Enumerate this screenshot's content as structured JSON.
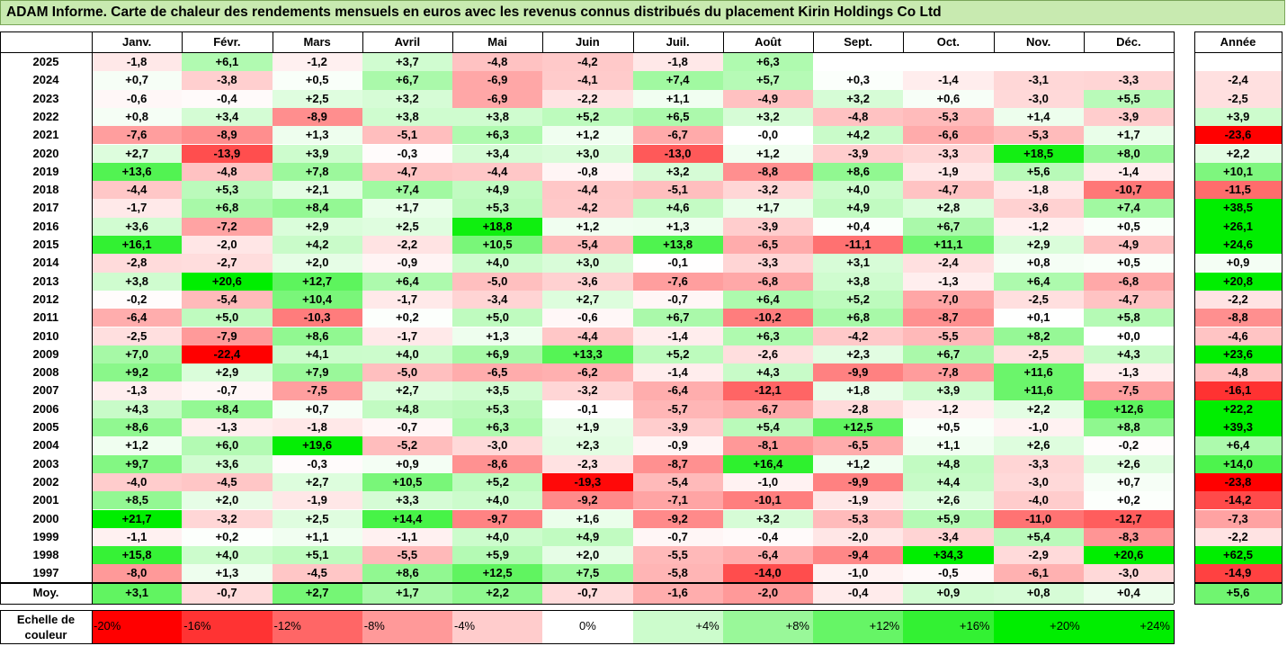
{
  "title": "ADAM Informe. Carte de chaleur des rendements mensuels en euros avec les revenus connus distribués du placement Kirin Holdings Co Ltd",
  "chart_data": {
    "type": "heatmap",
    "columns": [
      "Janv.",
      "Févr.",
      "Mars",
      "Avril",
      "Mai",
      "Juin",
      "Juil.",
      "Août",
      "Sept.",
      "Oct.",
      "Nov.",
      "Déc."
    ],
    "year_column_label": "Année",
    "rows": [
      {
        "year": "2025",
        "months": [
          "-1,8",
          "+6,1",
          "-1,2",
          "+3,7",
          "-4,8",
          "-4,2",
          "-1,8",
          "+6,3",
          "",
          "",
          "",
          ""
        ],
        "annual": ""
      },
      {
        "year": "2024",
        "months": [
          "+0,7",
          "-3,8",
          "+0,5",
          "+6,7",
          "-6,9",
          "-4,1",
          "+7,4",
          "+5,7",
          "+0,3",
          "-1,4",
          "-3,1",
          "-3,3"
        ],
        "annual": "-2,4"
      },
      {
        "year": "2023",
        "months": [
          "-0,6",
          "-0,4",
          "+2,5",
          "+3,2",
          "-6,9",
          "-2,2",
          "+1,1",
          "-4,9",
          "+3,2",
          "+0,6",
          "-3,0",
          "+5,5"
        ],
        "annual": "-2,5"
      },
      {
        "year": "2022",
        "months": [
          "+0,8",
          "+3,4",
          "-8,9",
          "+3,8",
          "+3,8",
          "+5,2",
          "+6,5",
          "+3,2",
          "-4,8",
          "-5,3",
          "+1,4",
          "-3,9"
        ],
        "annual": "+3,9"
      },
      {
        "year": "2021",
        "months": [
          "-7,6",
          "-8,9",
          "+1,3",
          "-5,1",
          "+6,3",
          "+1,2",
          "-6,7",
          "-0,0",
          "+4,2",
          "-6,6",
          "-5,3",
          "+1,7"
        ],
        "annual": "-23,6"
      },
      {
        "year": "2020",
        "months": [
          "+2,7",
          "-13,9",
          "+3,9",
          "-0,3",
          "+3,4",
          "+3,0",
          "-13,0",
          "+1,2",
          "-3,9",
          "-3,3",
          "+18,5",
          "+8,0"
        ],
        "annual": "+2,2"
      },
      {
        "year": "2019",
        "months": [
          "+13,6",
          "-4,8",
          "+7,8",
          "-4,7",
          "-4,4",
          "-0,8",
          "+3,2",
          "-8,8",
          "+8,6",
          "-1,9",
          "+5,6",
          "-1,4"
        ],
        "annual": "+10,1"
      },
      {
        "year": "2018",
        "months": [
          "-4,4",
          "+5,3",
          "+2,1",
          "+7,4",
          "+4,9",
          "-4,4",
          "-5,1",
          "-3,2",
          "+4,0",
          "-4,7",
          "-1,8",
          "-10,7"
        ],
        "annual": "-11,5"
      },
      {
        "year": "2017",
        "months": [
          "-1,7",
          "+6,8",
          "+8,4",
          "+1,7",
          "+5,3",
          "-4,2",
          "+4,6",
          "+1,7",
          "+4,9",
          "+2,8",
          "-3,6",
          "+7,4"
        ],
        "annual": "+38,5"
      },
      {
        "year": "2016",
        "months": [
          "+3,6",
          "-7,2",
          "+2,9",
          "+2,5",
          "+18,8",
          "+1,2",
          "+1,3",
          "-3,9",
          "+0,4",
          "+6,7",
          "-1,2",
          "+0,5"
        ],
        "annual": "+26,1"
      },
      {
        "year": "2015",
        "months": [
          "+16,1",
          "-2,0",
          "+4,2",
          "-2,2",
          "+10,5",
          "-5,4",
          "+13,8",
          "-6,5",
          "-11,1",
          "+11,1",
          "+2,9",
          "-4,9"
        ],
        "annual": "+24,6"
      },
      {
        "year": "2014",
        "months": [
          "-2,8",
          "-2,7",
          "+2,0",
          "-0,9",
          "+4,0",
          "+3,0",
          "-0,1",
          "-3,3",
          "+3,1",
          "-2,4",
          "+0,8",
          "+0,5"
        ],
        "annual": "+0,9"
      },
      {
        "year": "2013",
        "months": [
          "+3,8",
          "+20,6",
          "+12,7",
          "+6,4",
          "-5,0",
          "-3,6",
          "-7,6",
          "-6,8",
          "+3,8",
          "-1,3",
          "+6,4",
          "-6,8"
        ],
        "annual": "+20,8"
      },
      {
        "year": "2012",
        "months": [
          "-0,2",
          "-5,4",
          "+10,4",
          "-1,7",
          "-3,4",
          "+2,7",
          "-0,7",
          "+6,4",
          "+5,2",
          "-7,0",
          "-2,5",
          "-4,7"
        ],
        "annual": "-2,2"
      },
      {
        "year": "2011",
        "months": [
          "-6,4",
          "+5,0",
          "-10,3",
          "+0,2",
          "+5,0",
          "-0,6",
          "+6,7",
          "-10,2",
          "+6,8",
          "-8,7",
          "+0,1",
          "+5,8"
        ],
        "annual": "-8,8"
      },
      {
        "year": "2010",
        "months": [
          "-2,5",
          "-7,9",
          "+8,6",
          "-1,7",
          "+1,3",
          "-4,4",
          "-1,4",
          "+6,3",
          "-4,2",
          "-5,5",
          "+8,2",
          "+0,0"
        ],
        "annual": "-4,6"
      },
      {
        "year": "2009",
        "months": [
          "+7,0",
          "-22,4",
          "+4,1",
          "+4,0",
          "+6,9",
          "+13,3",
          "+5,2",
          "-2,6",
          "+2,3",
          "+6,7",
          "-2,5",
          "+4,3"
        ],
        "annual": "+23,6"
      },
      {
        "year": "2008",
        "months": [
          "+9,2",
          "+2,9",
          "+7,9",
          "-5,0",
          "-6,5",
          "-6,2",
          "-1,4",
          "+4,3",
          "-9,9",
          "-7,8",
          "+11,6",
          "-1,3"
        ],
        "annual": "-4,8"
      },
      {
        "year": "2007",
        "months": [
          "-1,3",
          "-0,7",
          "-7,5",
          "+2,7",
          "+3,5",
          "-3,2",
          "-6,4",
          "-12,1",
          "+1,8",
          "+3,9",
          "+11,6",
          "-7,5"
        ],
        "annual": "-16,1"
      },
      {
        "year": "2006",
        "months": [
          "+4,3",
          "+8,4",
          "+0,7",
          "+4,8",
          "+5,3",
          "-0,1",
          "-5,7",
          "-6,7",
          "-2,8",
          "-1,2",
          "+2,2",
          "+12,6"
        ],
        "annual": "+22,2"
      },
      {
        "year": "2005",
        "months": [
          "+8,6",
          "-1,3",
          "-1,8",
          "-0,7",
          "+6,3",
          "+1,9",
          "-3,9",
          "+5,4",
          "+12,5",
          "+0,5",
          "-1,0",
          "+8,8"
        ],
        "annual": "+39,3"
      },
      {
        "year": "2004",
        "months": [
          "+1,2",
          "+6,0",
          "+19,6",
          "-5,2",
          "-3,0",
          "+2,3",
          "-0,9",
          "-8,1",
          "-6,5",
          "+1,1",
          "+2,6",
          "-0,2"
        ],
        "annual": "+6,4"
      },
      {
        "year": "2003",
        "months": [
          "+9,7",
          "+3,6",
          "-0,3",
          "+0,9",
          "-8,6",
          "-2,3",
          "-8,7",
          "+16,4",
          "+1,2",
          "+4,8",
          "-3,3",
          "+2,6"
        ],
        "annual": "+14,0"
      },
      {
        "year": "2002",
        "months": [
          "-4,0",
          "-4,5",
          "+2,7",
          "+10,5",
          "+5,2",
          "-19,3",
          "-5,4",
          "-1,0",
          "-9,9",
          "+4,4",
          "-3,0",
          "+0,7"
        ],
        "annual": "-23,8"
      },
      {
        "year": "2001",
        "months": [
          "+8,5",
          "+2,0",
          "-1,9",
          "+3,3",
          "+4,0",
          "-9,2",
          "-7,1",
          "-10,1",
          "-1,9",
          "+2,6",
          "-4,0",
          "+0,2"
        ],
        "annual": "-14,2"
      },
      {
        "year": "2000",
        "months": [
          "+21,7",
          "-3,2",
          "+2,5",
          "+14,4",
          "-9,7",
          "+1,6",
          "-9,2",
          "+3,2",
          "-5,3",
          "+5,9",
          "-11,0",
          "-12,7"
        ],
        "annual": "-7,3"
      },
      {
        "year": "1999",
        "months": [
          "-1,1",
          "+0,2",
          "+1,1",
          "-1,1",
          "+4,0",
          "+4,9",
          "-0,7",
          "-0,4",
          "-2,0",
          "-3,4",
          "+5,4",
          "-8,3"
        ],
        "annual": "-2,2"
      },
      {
        "year": "1998",
        "months": [
          "+15,8",
          "+4,0",
          "+5,1",
          "-5,5",
          "+5,9",
          "+2,0",
          "-5,5",
          "-6,4",
          "-9,4",
          "+34,3",
          "-2,9",
          "+20,6"
        ],
        "annual": "+62,5"
      },
      {
        "year": "1997",
        "months": [
          "-8,0",
          "+1,3",
          "-4,5",
          "+8,6",
          "+12,5",
          "+7,5",
          "-5,8",
          "-14,0",
          "-1,0",
          "-0,5",
          "-6,1",
          "-3,0"
        ],
        "annual": "-14,9"
      }
    ],
    "average": {
      "label": "Moy.",
      "months": [
        "+3,1",
        "-0,7",
        "+2,7",
        "+1,7",
        "+2,2",
        "-0,7",
        "-1,6",
        "-2,0",
        "-0,4",
        "+0,9",
        "+0,8",
        "+0,4"
      ],
      "annual": "+5,6"
    },
    "scale": {
      "label": "Echelle de couleur",
      "steps": [
        {
          "label": "-20%",
          "value": -20
        },
        {
          "label": "-16%",
          "value": -16
        },
        {
          "label": "-12%",
          "value": -12
        },
        {
          "label": "-8%",
          "value": -8
        },
        {
          "label": "-4%",
          "value": -4
        },
        {
          "label": "0%",
          "value": 0
        },
        {
          "label": "+4%",
          "value": 4
        },
        {
          "label": "+8%",
          "value": 8
        },
        {
          "label": "+12%",
          "value": 12
        },
        {
          "label": "+16%",
          "value": 16
        },
        {
          "label": "+20%",
          "value": 20
        },
        {
          "label": "+24%",
          "value": 24
        }
      ]
    },
    "colors": {
      "negative": "#ff0000",
      "neutral": "#ffffff",
      "positive": "#00ee00"
    }
  }
}
